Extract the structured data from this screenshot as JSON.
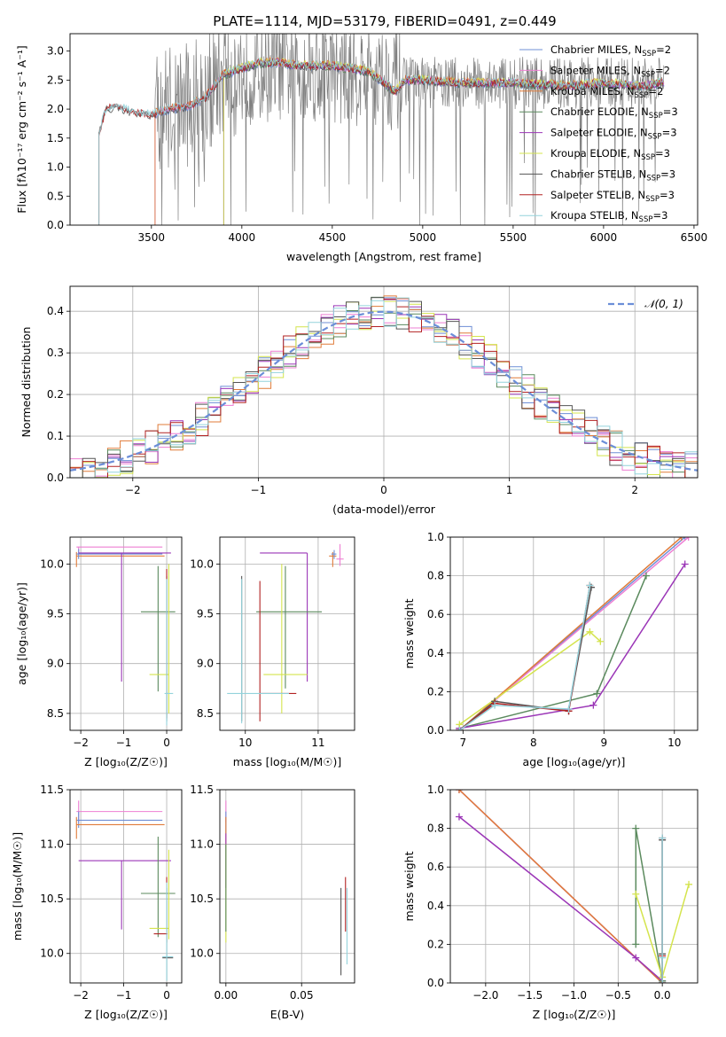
{
  "figure": {
    "title": "PLATE=1114, MJD=53179, FIBERID=0491, z=0.449"
  },
  "colors": {
    "Chabrier MILES": "#6f8fd6",
    "Salpeter MILES": "#ee7fd3",
    "Kroupa MILES": "#e07b39",
    "Chabrier ELODIE": "#5b8a5e",
    "Salpeter ELODIE": "#9b36b7",
    "Kroupa ELODIE": "#d4e44d",
    "Chabrier STELIB": "#555555",
    "Salpeter STELIB": "#b22222",
    "Kroupa STELIB": "#93d3dc",
    "data": "#808080",
    "normal": "#6b8ed8"
  },
  "chart_data": [
    {
      "id": "spectrum",
      "type": "line",
      "title": "PLATE=1114, MJD=53179, FIBERID=0491, z=0.449",
      "xlabel": "wavelength [Angstrom, rest frame]",
      "ylabel": "Flux [fλ10⁻¹⁷ erg cm⁻² s⁻¹ A⁻¹]",
      "xlim": [
        3050,
        6520
      ],
      "ylim": [
        0,
        3.3
      ],
      "xticks": [
        "3500",
        "4000",
        "4500",
        "5000",
        "5500",
        "6000",
        "6500"
      ],
      "yticks": [
        "0.0",
        "0.5",
        "1.0",
        "1.5",
        "2.0",
        "2.5",
        "3.0"
      ],
      "grid": false,
      "legend_position": "upper right",
      "legend": [
        {
          "label": "Chabrier MILES, N",
          "sub": "SSP",
          "tail": "=2"
        },
        {
          "label": "Salpeter MILES, N",
          "sub": "SSP",
          "tail": "=2"
        },
        {
          "label": "Kroupa MILES, N",
          "sub": "SSP",
          "tail": "=2"
        },
        {
          "label": "Chabrier ELODIE, N",
          "sub": "SSP",
          "tail": "=3"
        },
        {
          "label": "Salpeter ELODIE, N",
          "sub": "SSP",
          "tail": "=3"
        },
        {
          "label": "Kroupa ELODIE, N",
          "sub": "SSP",
          "tail": "=3"
        },
        {
          "label": "Chabrier STELIB, N",
          "sub": "SSP",
          "tail": "=3"
        },
        {
          "label": "Salpeter STELIB, N",
          "sub": "SSP",
          "tail": "=3"
        },
        {
          "label": "Kroupa STELIB, N",
          "sub": "SSP",
          "tail": "=3"
        }
      ],
      "series_start": {
        "MILES": 3520,
        "ELODIE": 3900,
        "STELIB": 3210
      },
      "model_continuum": [
        [
          3210,
          1.6
        ],
        [
          3250,
          2.0
        ],
        [
          3300,
          2.05
        ],
        [
          3400,
          1.95
        ],
        [
          3500,
          1.9
        ],
        [
          3600,
          2.0
        ],
        [
          3700,
          2.05
        ],
        [
          3800,
          2.2
        ],
        [
          3900,
          2.6
        ],
        [
          4000,
          2.7
        ],
        [
          4100,
          2.8
        ],
        [
          4200,
          2.8
        ],
        [
          4300,
          2.75
        ],
        [
          4500,
          2.75
        ],
        [
          4700,
          2.65
        ],
        [
          4850,
          2.3
        ],
        [
          4900,
          2.5
        ],
        [
          5000,
          2.5
        ],
        [
          5200,
          2.45
        ],
        [
          5500,
          2.45
        ],
        [
          5800,
          2.4
        ],
        [
          6000,
          2.45
        ],
        [
          6200,
          2.4
        ],
        [
          6330,
          2.45
        ]
      ],
      "data_continuum": [
        [
          3210,
          1.6
        ],
        [
          3250,
          2.0
        ],
        [
          3300,
          2.05
        ],
        [
          3400,
          1.95
        ],
        [
          3500,
          1.9
        ],
        [
          3600,
          2.1
        ],
        [
          3700,
          2.1
        ],
        [
          3800,
          2.3
        ],
        [
          3900,
          2.6
        ],
        [
          4000,
          2.6
        ],
        [
          4200,
          2.7
        ],
        [
          4500,
          2.65
        ],
        [
          4800,
          2.55
        ],
        [
          5000,
          2.45
        ],
        [
          5500,
          2.45
        ],
        [
          6000,
          2.45
        ],
        [
          6330,
          2.45
        ]
      ]
    },
    {
      "id": "residuals",
      "type": "histogram",
      "xlabel": "(data-model)/error",
      "ylabel": "Normed distribution",
      "xlim": [
        -2.5,
        2.5
      ],
      "ylim": [
        0,
        0.46
      ],
      "xticks": [
        "−2",
        "−1",
        "0",
        "1",
        "2"
      ],
      "yticks": [
        "0.0",
        "0.1",
        "0.2",
        "0.3",
        "0.4"
      ],
      "grid": true,
      "legend_position": "upper right",
      "legend": [
        {
          "label": "𝒩(0, 1)"
        }
      ],
      "bin_width": 0.1
    },
    {
      "id": "age-vs-Z",
      "type": "scatter",
      "xlabel": "Z [log₁₀(Z/Z☉)]",
      "ylabel": "age  [log₁₀(age/yr)]",
      "xlim": [
        -2.25,
        0.35
      ],
      "ylim": [
        8.33,
        10.27
      ],
      "xticks": [
        "−2",
        "−1",
        "0"
      ],
      "yticks": [
        "8.5",
        "9.0",
        "9.5",
        "10.0"
      ],
      "grid": true,
      "points": [
        {
          "model": "Salpeter MILES",
          "x": -2.05,
          "xl": -2.1,
          "xh": -0.1,
          "y": 10.17,
          "yl": 10.1,
          "yh": 10.17
        },
        {
          "model": "Kroupa MILES",
          "x": -2.1,
          "xl": -2.1,
          "xh": -0.05,
          "y": 10.08,
          "yl": 9.97,
          "yh": 10.12
        },
        {
          "model": "Chabrier MILES",
          "x": -2.05,
          "xl": -2.1,
          "xh": -0.1,
          "y": 10.1,
          "yl": 10.05,
          "yh": 10.15
        },
        {
          "model": "Salpeter ELODIE",
          "x": -1.05,
          "xl": -2.05,
          "xh": 0.1,
          "y": 10.11,
          "yl": 8.82,
          "yh": 10.11
        },
        {
          "model": "Chabrier ELODIE",
          "x": -0.2,
          "xl": -0.6,
          "xh": 0.2,
          "y": 9.52,
          "yl": 8.72,
          "yh": 9.98
        },
        {
          "model": "Kroupa ELODIE",
          "x": 0.05,
          "xl": -0.4,
          "xh": 0.05,
          "y": 8.89,
          "yl": 8.5,
          "yh": 10.0
        },
        {
          "model": "Chabrier STELIB",
          "x": 0.0,
          "xl": 0.0,
          "xh": 0.02,
          "y": 8.7,
          "yl": 8.42,
          "yh": 9.88
        },
        {
          "model": "Salpeter STELIB",
          "x": 0.0,
          "xl": 0.0,
          "xh": 0.02,
          "y": 8.7,
          "yl": 8.45,
          "yh": 9.95
        },
        {
          "model": "Kroupa STELIB",
          "x": 0.0,
          "xl": -0.05,
          "xh": 0.15,
          "y": 8.7,
          "yl": 8.38,
          "yh": 9.85
        }
      ]
    },
    {
      "id": "age-vs-mass",
      "type": "scatter",
      "xlabel": "mass [log₁₀(M/M☉)]",
      "ylabel": "",
      "xlim": [
        9.65,
        11.5
      ],
      "ylim": [
        8.33,
        10.27
      ],
      "xticks": [
        "10",
        "11"
      ],
      "yticks": [
        "8.5",
        "9.0",
        "9.5",
        "10.0"
      ],
      "grid": true,
      "points": [
        {
          "model": "Salpeter MILES",
          "x": 11.3,
          "xl": 11.25,
          "xh": 11.35,
          "y": 10.05,
          "yl": 9.98,
          "yh": 10.2
        },
        {
          "model": "Kroupa MILES",
          "x": 11.2,
          "xl": 11.15,
          "xh": 11.25,
          "y": 10.08,
          "yl": 9.97,
          "yh": 10.12
        },
        {
          "model": "Chabrier MILES",
          "x": 11.22,
          "xl": 11.18,
          "xh": 11.25,
          "y": 10.1,
          "yl": 10.05,
          "yh": 10.14
        },
        {
          "model": "Salpeter ELODIE",
          "x": 10.85,
          "xl": 10.2,
          "xh": 10.85,
          "y": 10.11,
          "yl": 8.82,
          "yh": 10.11
        },
        {
          "model": "Chabrier ELODIE",
          "x": 10.55,
          "xl": 10.15,
          "xh": 11.05,
          "y": 9.52,
          "yl": 8.75,
          "yh": 9.98
        },
        {
          "model": "Kroupa ELODIE",
          "x": 10.5,
          "xl": 10.25,
          "xh": 10.85,
          "y": 8.89,
          "yl": 8.5,
          "yh": 10.0
        },
        {
          "model": "Chabrier STELIB",
          "x": 9.95,
          "xl": 9.95,
          "xh": 9.95,
          "y": 8.7,
          "yl": 8.42,
          "yh": 9.88
        },
        {
          "model": "Salpeter STELIB",
          "x": 10.2,
          "xl": 10.2,
          "xh": 10.7,
          "y": 8.7,
          "yl": 8.42,
          "yh": 9.83
        },
        {
          "model": "Kroupa STELIB",
          "x": 9.95,
          "xl": 9.75,
          "xh": 10.6,
          "y": 8.7,
          "yl": 8.4,
          "yh": 9.85
        }
      ]
    },
    {
      "id": "weight-vs-age",
      "type": "line",
      "xlabel": "age  [log₁₀(age/yr)]",
      "ylabel": "mass weight",
      "xlim": [
        6.82,
        10.33
      ],
      "ylim": [
        0,
        1.0
      ],
      "xticks": [
        "7",
        "8",
        "9",
        "10"
      ],
      "yticks": [
        "0.0",
        "0.2",
        "0.4",
        "0.6",
        "0.8",
        "1.0"
      ],
      "grid": true,
      "series": [
        {
          "model": "Chabrier MILES",
          "x": [
            6.95,
            10.15
          ],
          "y": [
            0.0,
            1.0
          ]
        },
        {
          "model": "Salpeter MILES",
          "x": [
            6.95,
            10.2
          ],
          "y": [
            0.0,
            1.0
          ]
        },
        {
          "model": "Kroupa MILES",
          "x": [
            6.95,
            10.1
          ],
          "y": [
            0.0,
            1.0
          ]
        },
        {
          "model": "Chabrier ELODIE",
          "x": [
            6.95,
            8.9,
            9.6
          ],
          "y": [
            0.01,
            0.19,
            0.8
          ]
        },
        {
          "model": "Salpeter ELODIE",
          "x": [
            6.95,
            8.85,
            10.15
          ],
          "y": [
            0.01,
            0.13,
            0.86
          ]
        },
        {
          "model": "Kroupa ELODIE",
          "x": [
            6.95,
            8.8,
            8.95
          ],
          "y": [
            0.03,
            0.51,
            0.46
          ]
        },
        {
          "model": "Chabrier STELIB",
          "x": [
            6.95,
            7.45,
            8.5,
            8.82
          ],
          "y": [
            0.0,
            0.15,
            0.1,
            0.74
          ]
        },
        {
          "model": "Salpeter STELIB",
          "x": [
            6.95,
            7.45,
            8.5,
            8.8
          ],
          "y": [
            0.0,
            0.14,
            0.1,
            0.75
          ]
        },
        {
          "model": "Kroupa STELIB",
          "x": [
            6.95,
            7.45,
            8.5,
            8.8
          ],
          "y": [
            0.0,
            0.13,
            0.11,
            0.75
          ]
        }
      ]
    },
    {
      "id": "mass-vs-Z",
      "type": "scatter",
      "xlabel": "Z [log₁₀(Z/Z☉)]",
      "ylabel": "mass [log₁₀(M/M☉)]",
      "xlim": [
        -2.25,
        0.35
      ],
      "ylim": [
        9.73,
        11.5
      ],
      "xticks": [
        "−2",
        "−1",
        "0"
      ],
      "yticks": [
        "10.0",
        "10.5",
        "11.0",
        "11.5"
      ],
      "grid": true,
      "points": [
        {
          "model": "Salpeter MILES",
          "x": -2.05,
          "xl": -2.1,
          "xh": -0.1,
          "y": 11.3,
          "yl": 11.2,
          "yh": 11.4
        },
        {
          "model": "Chabrier MILES",
          "x": -2.05,
          "xl": -2.1,
          "xh": -0.1,
          "y": 11.22,
          "yl": 11.15,
          "yh": 11.3
        },
        {
          "model": "Kroupa MILES",
          "x": -2.1,
          "xl": -2.1,
          "xh": -0.05,
          "y": 11.18,
          "yl": 11.05,
          "yh": 11.25
        },
        {
          "model": "Salpeter ELODIE",
          "x": -1.05,
          "xl": -2.05,
          "xh": 0.1,
          "y": 10.85,
          "yl": 10.22,
          "yh": 10.85
        },
        {
          "model": "Chabrier ELODIE",
          "x": -0.2,
          "xl": -0.6,
          "xh": 0.2,
          "y": 10.55,
          "yl": 10.15,
          "yh": 11.07
        },
        {
          "model": "Kroupa ELODIE",
          "x": 0.05,
          "xl": -0.4,
          "xh": 0.05,
          "y": 10.23,
          "yl": 10.13,
          "yh": 10.95
        },
        {
          "model": "Salpeter STELIB",
          "x": 0.0,
          "xl": -0.3,
          "xh": 0.02,
          "y": 10.18,
          "yl": 10.1,
          "yh": 10.7
        },
        {
          "model": "Chabrier STELIB",
          "x": 0.0,
          "xl": -0.1,
          "xh": 0.15,
          "y": 9.96,
          "yl": 9.75,
          "yh": 10.6
        },
        {
          "model": "Kroupa STELIB",
          "x": 0.0,
          "xl": -0.1,
          "xh": 0.15,
          "y": 9.97,
          "yl": 9.75,
          "yh": 10.65
        }
      ]
    },
    {
      "id": "mass-vs-ebv",
      "type": "scatter",
      "xlabel": "E(B-V)",
      "ylabel": "",
      "xlim": [
        -0.004,
        0.085
      ],
      "ylim": [
        9.73,
        11.5
      ],
      "xticks": [
        "0.00",
        "0.05"
      ],
      "yticks": [
        "10.0",
        "10.5",
        "11.0",
        "11.5"
      ],
      "grid": true,
      "points": [
        {
          "model": "Salpeter MILES",
          "x": 0.0,
          "xl": 0.0,
          "xh": 0.0,
          "y": 11.3,
          "yl": 11.2,
          "yh": 11.4
        },
        {
          "model": "Chabrier MILES",
          "x": 0.0,
          "xl": 0.0,
          "xh": 0.0,
          "y": 11.22,
          "yl": 11.1,
          "yh": 11.3
        },
        {
          "model": "Kroupa MILES",
          "x": 0.0,
          "xl": 0.0,
          "xh": 0.0,
          "y": 11.18,
          "yl": 11.0,
          "yh": 11.25
        },
        {
          "model": "Salpeter ELODIE",
          "x": 0.0,
          "xl": 0.0,
          "xh": 0.0,
          "y": 10.85,
          "yl": 10.6,
          "yh": 11.1
        },
        {
          "model": "Kroupa ELODIE",
          "x": 0.0,
          "xl": 0.0,
          "xh": 0.0,
          "y": 10.23,
          "yl": 10.1,
          "yh": 11.0
        },
        {
          "model": "Chabrier ELODIE",
          "x": 0.0,
          "xl": 0.0,
          "xh": 0.0,
          "y": 10.55,
          "yl": 10.2,
          "yh": 11.0
        },
        {
          "model": "Chabrier STELIB",
          "x": 0.076,
          "xl": 0.076,
          "xh": 0.076,
          "y": 10.2,
          "yl": 9.8,
          "yh": 10.6
        },
        {
          "model": "Salpeter STELIB",
          "x": 0.079,
          "xl": 0.079,
          "xh": 0.079,
          "y": 10.45,
          "yl": 10.2,
          "yh": 10.7
        },
        {
          "model": "Kroupa STELIB",
          "x": 0.08,
          "xl": 0.08,
          "xh": 0.08,
          "y": 10.2,
          "yl": 9.9,
          "yh": 10.6
        }
      ]
    },
    {
      "id": "weight-vs-Z",
      "type": "line",
      "xlabel": "Z [log₁₀(Z/Z☉)]",
      "ylabel": "mass weight",
      "xlim": [
        -2.4,
        0.4
      ],
      "ylim": [
        0,
        1.0
      ],
      "xticks": [
        "−2.0",
        "−1.5",
        "−1.0",
        "−0.5",
        "0.0"
      ],
      "yticks": [
        "0.0",
        "0.2",
        "0.4",
        "0.6",
        "0.8",
        "1.0"
      ],
      "grid": true,
      "series": [
        {
          "model": "Chabrier MILES",
          "x": [
            -2.3,
            0.0
          ],
          "y": [
            1.0,
            0.0
          ]
        },
        {
          "model": "Salpeter MILES",
          "x": [
            -2.3,
            0.0
          ],
          "y": [
            1.0,
            0.0
          ]
        },
        {
          "model": "Kroupa MILES",
          "x": [
            -2.3,
            0.0
          ],
          "y": [
            1.0,
            0.0
          ]
        },
        {
          "model": "Salpeter ELODIE",
          "x": [
            -2.3,
            -0.3,
            0.0
          ],
          "y": [
            0.86,
            0.13,
            0.01
          ]
        },
        {
          "model": "Chabrier ELODIE",
          "x": [
            -0.3,
            -0.3,
            0.0
          ],
          "y": [
            0.2,
            0.8,
            0.01
          ]
        },
        {
          "model": "Kroupa ELODIE",
          "x": [
            -0.3,
            0.0,
            0.3
          ],
          "y": [
            0.46,
            0.03,
            0.51
          ]
        },
        {
          "model": "Chabrier STELIB",
          "x": [
            0.0,
            0.0,
            0.0
          ],
          "y": [
            0.0,
            0.74,
            0.15
          ]
        },
        {
          "model": "Salpeter STELIB",
          "x": [
            0.0,
            0.0,
            0.0
          ],
          "y": [
            0.0,
            0.75,
            0.14
          ]
        },
        {
          "model": "Kroupa STELIB",
          "x": [
            0.0,
            0.0,
            0.0
          ],
          "y": [
            0.0,
            0.75,
            0.13
          ]
        }
      ]
    }
  ]
}
